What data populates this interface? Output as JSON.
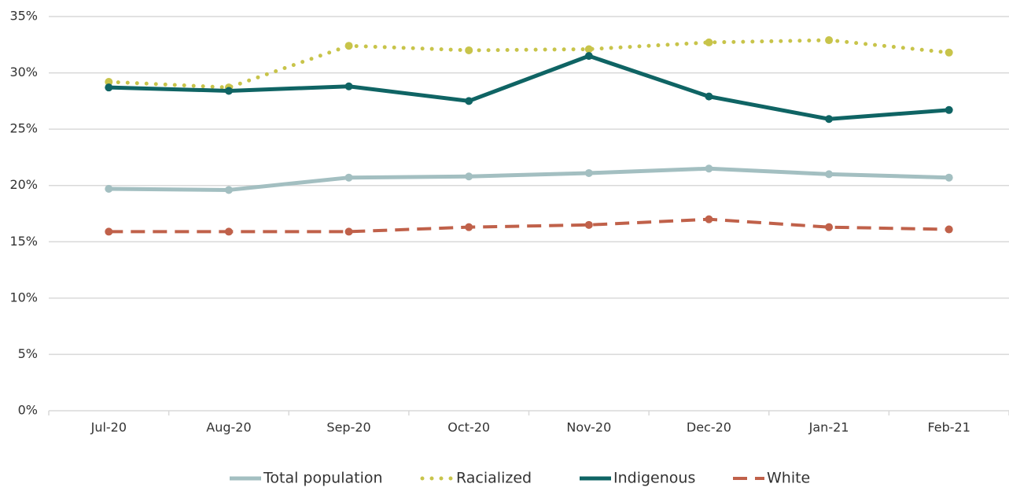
{
  "chart_data": {
    "type": "line",
    "categories": [
      "Jul-20",
      "Aug-20",
      "Sep-20",
      "Oct-20",
      "Nov-20",
      "Dec-20",
      "Jan-21",
      "Feb-21"
    ],
    "series": [
      {
        "name": "Total population",
        "color": "#a3bfc1",
        "style": "solid",
        "values": [
          19.7,
          19.6,
          20.7,
          20.8,
          21.1,
          21.5,
          21.0,
          20.7
        ]
      },
      {
        "name": "Racialized",
        "color": "#c8c44a",
        "style": "dotted",
        "values": [
          29.2,
          28.7,
          32.4,
          32.0,
          32.1,
          32.7,
          32.9,
          31.8
        ]
      },
      {
        "name": "Indigenous",
        "color": "#0f6464",
        "style": "solid",
        "values": [
          28.7,
          28.4,
          28.8,
          27.5,
          31.5,
          27.9,
          25.9,
          26.7
        ]
      },
      {
        "name": "White",
        "color": "#c0614a",
        "style": "dashed",
        "values": [
          15.9,
          15.9,
          15.9,
          16.3,
          16.5,
          17.0,
          16.3,
          16.1
        ]
      }
    ],
    "ylim": [
      0,
      35
    ],
    "yticks": [
      {
        "value": 0,
        "label": "0%"
      },
      {
        "value": 5,
        "label": "5%"
      },
      {
        "value": 10,
        "label": "10%"
      },
      {
        "value": 15,
        "label": "15%"
      },
      {
        "value": 20,
        "label": "20%"
      },
      {
        "value": 25,
        "label": "25%"
      },
      {
        "value": 30,
        "label": "30%"
      },
      {
        "value": 35,
        "label": "35%"
      }
    ],
    "grid": true,
    "legend": "bottom"
  }
}
